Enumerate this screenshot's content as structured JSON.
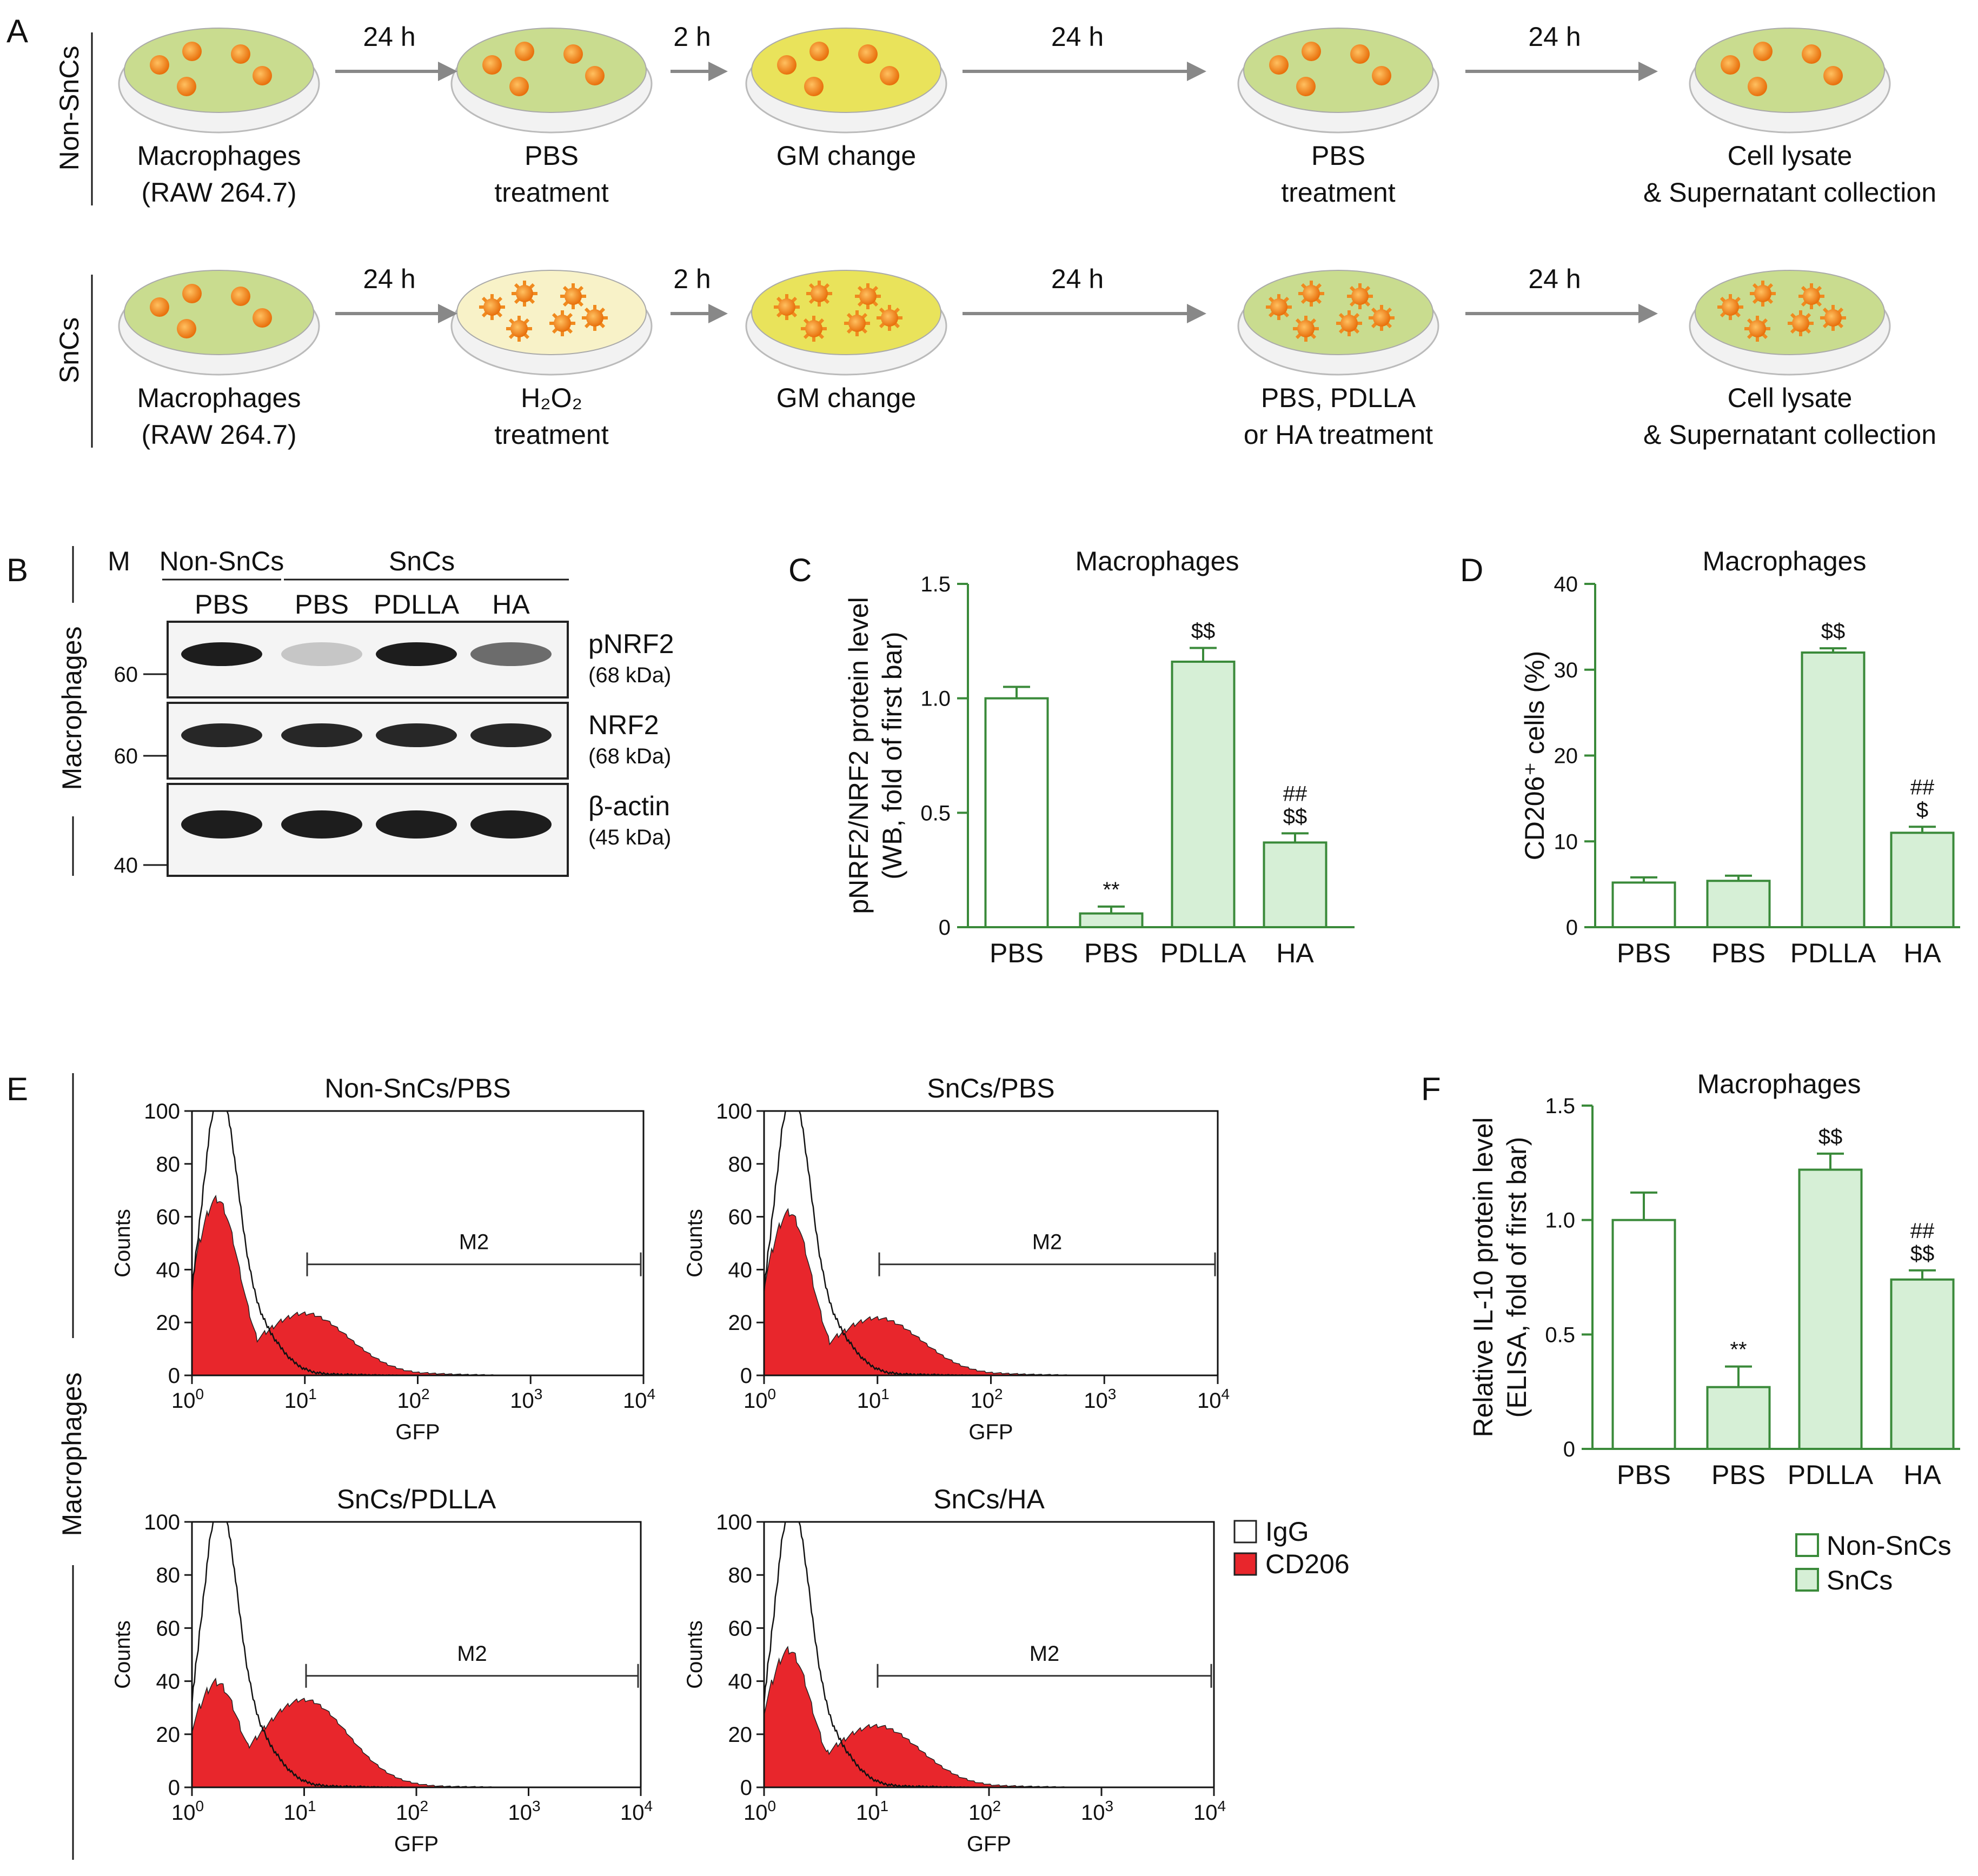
{
  "colors": {
    "green_axis": "#3a8a3a",
    "green_fill": "#d6efd6",
    "cd206_red": "#e8262c",
    "dish_medium": "#c9dc8f",
    "dish_yellow": "#e9e35b",
    "dish_pale": "#f8f2c8",
    "cell_orange": "#f08a1e"
  },
  "panelA": {
    "label": "A",
    "rows": [
      {
        "row_label": "Non-SnCs",
        "arrows": [
          "24 h",
          "2 h",
          "24 h",
          "24 h"
        ],
        "steps": [
          {
            "line1": "Macrophages",
            "line2": "(RAW 264.7)"
          },
          {
            "line1": "PBS",
            "line2": "treatment"
          },
          {
            "line1": "GM change",
            "line2": ""
          },
          {
            "line1": "PBS",
            "line2": "treatment"
          },
          {
            "line1": "Cell lysate",
            "line2": "& Supernatant collection"
          }
        ]
      },
      {
        "row_label": "SnCs",
        "arrows": [
          "24 h",
          "2 h",
          "24 h",
          "24 h"
        ],
        "steps": [
          {
            "line1": "Macrophages",
            "line2": "(RAW 264.7)"
          },
          {
            "line1": "H₂O₂",
            "line2": "treatment"
          },
          {
            "line1": "GM change",
            "line2": ""
          },
          {
            "line1": "PBS, PDLLA",
            "line2": "or HA treatment"
          },
          {
            "line1": "Cell lysate",
            "line2": "& Supernatant collection"
          }
        ]
      }
    ]
  },
  "panelB": {
    "label": "B",
    "side_label": "Macrophages",
    "marker": "M",
    "group_nonsncs": "Non-SnCs",
    "group_sncs": "SnCs",
    "lanes": [
      "PBS",
      "PBS",
      "PDLLA",
      "HA"
    ],
    "mw": [
      "60",
      "60",
      "40"
    ],
    "blots": [
      {
        "name": "pNRF2",
        "kda": "(68 kDa)"
      },
      {
        "name": "NRF2",
        "kda": "(68 kDa)"
      },
      {
        "name": "β-actin",
        "kda": "(45 kDa)"
      }
    ]
  },
  "chart_data": [
    {
      "panel": "C",
      "type": "bar",
      "title": "Macrophages",
      "ylabel_line1": "pNRF2/NRF2 protein level",
      "ylabel_line2": "(WB, fold of first bar)",
      "categories": [
        "PBS",
        "PBS",
        "PDLLA",
        "HA"
      ],
      "values": [
        1.0,
        0.06,
        1.16,
        0.37
      ],
      "errors": [
        0.05,
        0.03,
        0.06,
        0.04
      ],
      "ylim": [
        0,
        1.5
      ],
      "yticks": [
        "0",
        "0.5",
        "1.0",
        "1.5"
      ],
      "annotations": [
        [],
        [
          "**"
        ],
        [
          "$$"
        ],
        [
          "##",
          "$$"
        ]
      ]
    },
    {
      "panel": "D",
      "type": "bar",
      "title": "Macrophages",
      "ylabel_line1": "CD206⁺ cells (%)",
      "ylabel_line2": "",
      "categories": [
        "PBS",
        "PBS",
        "PDLLA",
        "HA"
      ],
      "values": [
        5.2,
        5.4,
        32.0,
        11.0
      ],
      "errors": [
        0.6,
        0.6,
        0.5,
        0.7
      ],
      "ylim": [
        0,
        40
      ],
      "yticks": [
        "0",
        "10",
        "20",
        "30",
        "40"
      ],
      "annotations": [
        [],
        [],
        [
          "$$"
        ],
        [
          "##",
          "$"
        ]
      ]
    },
    {
      "panel": "F",
      "type": "bar",
      "title": "Macrophages",
      "ylabel_line1": "Relative IL-10 protein level",
      "ylabel_line2": "(ELISA, fold of first bar)",
      "categories": [
        "PBS",
        "PBS",
        "PDLLA",
        "HA"
      ],
      "values": [
        1.0,
        0.27,
        1.22,
        0.74
      ],
      "errors": [
        0.12,
        0.09,
        0.07,
        0.04
      ],
      "ylim": [
        0,
        1.5
      ],
      "yticks": [
        "0",
        "0.5",
        "1.0",
        "1.5"
      ],
      "annotations": [
        [],
        [
          "**"
        ],
        [
          "$$"
        ],
        [
          "##",
          "$$"
        ]
      ]
    }
  ],
  "panelE": {
    "label": "E",
    "side_label": "Macrophages",
    "ylabel": "Counts",
    "xlabel": "GFP",
    "gate_label": "M2",
    "yticks": [
      "0",
      "20",
      "40",
      "60",
      "80",
      "100"
    ],
    "xtick_base": "10",
    "xtick_exp": [
      "0",
      "1",
      "2",
      "3",
      "4"
    ],
    "plots": [
      {
        "title": "Non-SnCs/PBS",
        "cd206_peak": 65,
        "cd206_shoulder": 0.35,
        "igg_peak": 100
      },
      {
        "title": "SnCs/PBS",
        "cd206_peak": 60,
        "cd206_shoulder": 0.35,
        "igg_peak": 100
      },
      {
        "title": "SnCs/PDLLA",
        "cd206_peak": 38,
        "cd206_shoulder": 0.85,
        "igg_peak": 100
      },
      {
        "title": "SnCs/HA",
        "cd206_peak": 50,
        "cd206_shoulder": 0.45,
        "igg_peak": 100
      }
    ],
    "legend": [
      "IgG",
      "CD206"
    ]
  },
  "legendF": [
    "Non-SnCs",
    "SnCs"
  ]
}
